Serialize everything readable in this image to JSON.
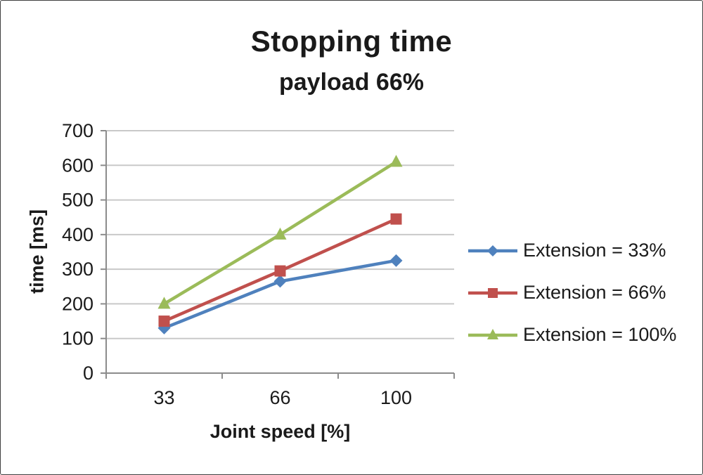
{
  "chart_data": {
    "type": "line",
    "title": "Stopping time",
    "subtitle": "payload 66%",
    "xlabel": "Joint speed [%]",
    "ylabel": "time [ms]",
    "categories": [
      "33",
      "66",
      "100"
    ],
    "series": [
      {
        "name": "Extension = 33%",
        "color": "#4F81BD",
        "marker": "diamond",
        "values": [
          130,
          265,
          325
        ]
      },
      {
        "name": "Extension = 66%",
        "color": "#C0504D",
        "marker": "square",
        "values": [
          150,
          295,
          445
        ]
      },
      {
        "name": "Extension = 100%",
        "color": "#9BBB59",
        "marker": "triangle",
        "values": [
          200,
          400,
          610
        ]
      }
    ],
    "ylim": [
      0,
      700
    ],
    "yticks": [
      0,
      100,
      200,
      300,
      400,
      500,
      600,
      700
    ],
    "ytick_step": 100,
    "grid": true,
    "legend_position": "right",
    "gridline_color": "#C9C9C9",
    "axis_color": "#8C8C8C",
    "text_color": "#1a1a1a"
  }
}
